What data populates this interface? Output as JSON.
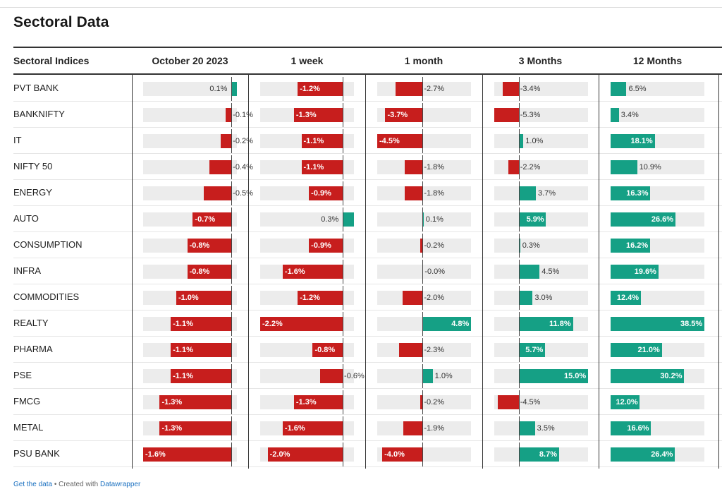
{
  "title": "Sectoral Data",
  "footer": {
    "get_data": "Get the data",
    "separator": " • Created with ",
    "created_with": "Datawrapper"
  },
  "colors": {
    "negative": "#c71e1d",
    "positive": "#15a085",
    "track": "#ececec"
  },
  "chart_data": {
    "type": "table",
    "row_header": "Sectoral Indices",
    "columns": [
      "October 20 2023",
      "1 week",
      "1 month",
      "3 Months",
      "12 Months"
    ],
    "unit": "%",
    "rows": [
      {
        "name": "PVT BANK",
        "values": [
          0.1,
          -1.2,
          -2.7,
          -3.4,
          6.5
        ]
      },
      {
        "name": "BANKNIFTY",
        "values": [
          -0.1,
          -1.3,
          -3.7,
          -5.3,
          3.4
        ]
      },
      {
        "name": "IT",
        "values": [
          -0.2,
          -1.1,
          -4.5,
          1.0,
          18.1
        ]
      },
      {
        "name": "NIFTY 50",
        "values": [
          -0.4,
          -1.1,
          -1.8,
          -2.2,
          10.9
        ]
      },
      {
        "name": "ENERGY",
        "values": [
          -0.5,
          -0.9,
          -1.8,
          3.7,
          16.3
        ]
      },
      {
        "name": "AUTO",
        "values": [
          -0.7,
          0.3,
          0.1,
          5.9,
          26.6
        ]
      },
      {
        "name": "CONSUMPTION",
        "values": [
          -0.8,
          -0.9,
          -0.2,
          0.3,
          16.2
        ]
      },
      {
        "name": "INFRA",
        "values": [
          -0.8,
          -1.6,
          -0.0,
          4.5,
          19.6
        ]
      },
      {
        "name": "COMMODITIES",
        "values": [
          -1.0,
          -1.2,
          -2.0,
          3.0,
          12.4
        ]
      },
      {
        "name": "REALTY",
        "values": [
          -1.1,
          -2.2,
          4.8,
          11.8,
          38.5
        ]
      },
      {
        "name": "PHARMA",
        "values": [
          -1.1,
          -0.8,
          -2.3,
          5.7,
          21.0
        ]
      },
      {
        "name": "PSE",
        "values": [
          -1.1,
          -0.6,
          1.0,
          15.0,
          30.2
        ]
      },
      {
        "name": "FMCG",
        "values": [
          -1.3,
          -1.3,
          -0.2,
          -4.5,
          12.0
        ]
      },
      {
        "name": "METAL",
        "values": [
          -1.3,
          -1.6,
          -1.9,
          3.5,
          16.6
        ]
      },
      {
        "name": "PSU BANK",
        "values": [
          -1.6,
          -2.0,
          -4.0,
          8.7,
          26.4
        ]
      }
    ],
    "value_labels": [
      [
        "0.1%",
        "-1.2%",
        "-2.7%",
        "-3.4%",
        "6.5%"
      ],
      [
        "-0.1%",
        "-1.3%",
        "-3.7%",
        "-5.3%",
        "3.4%"
      ],
      [
        "-0.2%",
        "-1.1%",
        "-4.5%",
        "1.0%",
        "18.1%"
      ],
      [
        "-0.4%",
        "-1.1%",
        "-1.8%",
        "-2.2%",
        "10.9%"
      ],
      [
        "-0.5%",
        "-0.9%",
        "-1.8%",
        "3.7%",
        "16.3%"
      ],
      [
        "-0.7%",
        "0.3%",
        "0.1%",
        "5.9%",
        "26.6%"
      ],
      [
        "-0.8%",
        "-0.9%",
        "-0.2%",
        "0.3%",
        "16.2%"
      ],
      [
        "-0.8%",
        "-1.6%",
        "-0.0%",
        "4.5%",
        "19.6%"
      ],
      [
        "-1.0%",
        "-1.2%",
        "-2.0%",
        "3.0%",
        "12.4%"
      ],
      [
        "-1.1%",
        "-2.2%",
        "4.8%",
        "11.8%",
        "38.5%"
      ],
      [
        "-1.1%",
        "-0.8%",
        "-2.3%",
        "5.7%",
        "21.0%"
      ],
      [
        "-1.1%",
        "-0.6%",
        "1.0%",
        "15.0%",
        "30.2%"
      ],
      [
        "-1.3%",
        "-1.3%",
        "-0.2%",
        "-4.5%",
        "12.0%"
      ],
      [
        "-1.3%",
        "-1.6%",
        "-1.9%",
        "3.5%",
        "16.6%"
      ],
      [
        "-1.6%",
        "-2.0%",
        "-4.0%",
        "8.7%",
        "26.4%"
      ]
    ],
    "column_ranges": [
      [
        -1.6,
        0.1
      ],
      [
        -2.2,
        0.3
      ],
      [
        -4.5,
        4.8
      ],
      [
        -5.3,
        15.0
      ],
      [
        0,
        38.5
      ]
    ]
  }
}
